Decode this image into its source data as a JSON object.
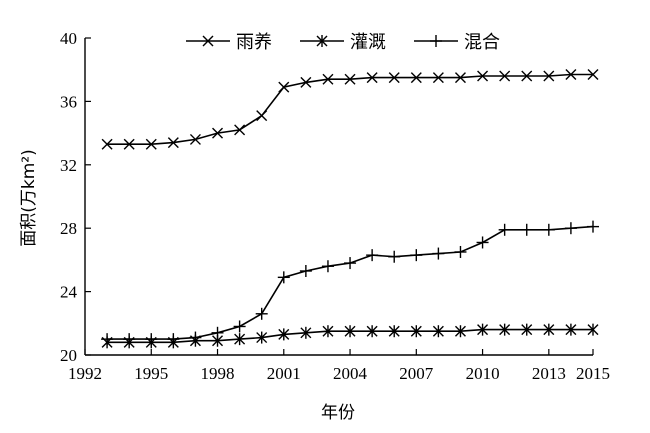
{
  "chart_data": {
    "type": "line",
    "xlabel": "年份",
    "ylabel": "面积(万km²)",
    "xlim": [
      1992,
      2015
    ],
    "ylim": [
      20,
      40
    ],
    "xticks": [
      "1992",
      "1995",
      "1998",
      "2001",
      "2004",
      "2007",
      "2010",
      "2013",
      "2015"
    ],
    "yticks": [
      "20",
      "24",
      "28",
      "32",
      "36",
      "40"
    ],
    "grid": false,
    "legend_position": "top-center",
    "series": [
      {
        "name": "雨养",
        "marker": "x",
        "x": [
          1993,
          1994,
          1995,
          1996,
          1997,
          1998,
          1999,
          2000,
          2001,
          2002,
          2003,
          2004,
          2005,
          2006,
          2007,
          2008,
          2009,
          2010,
          2011,
          2012,
          2013,
          2014,
          2015
        ],
        "values": [
          33.3,
          33.3,
          33.3,
          33.4,
          33.6,
          34.0,
          34.2,
          35.1,
          36.9,
          37.2,
          37.4,
          37.4,
          37.5,
          37.5,
          37.5,
          37.5,
          37.5,
          37.6,
          37.6,
          37.6,
          37.6,
          37.7,
          37.7
        ]
      },
      {
        "name": "灌溉",
        "marker": "asterisk",
        "x": [
          1993,
          1994,
          1995,
          1996,
          1997,
          1998,
          1999,
          2000,
          2001,
          2002,
          2003,
          2004,
          2005,
          2006,
          2007,
          2008,
          2009,
          2010,
          2011,
          2012,
          2013,
          2014,
          2015
        ],
        "values": [
          20.8,
          20.8,
          20.8,
          20.8,
          20.9,
          20.9,
          21.0,
          21.1,
          21.3,
          21.4,
          21.5,
          21.5,
          21.5,
          21.5,
          21.5,
          21.5,
          21.5,
          21.6,
          21.6,
          21.6,
          21.6,
          21.6,
          21.6
        ]
      },
      {
        "name": "混合",
        "marker": "plus",
        "x": [
          1993,
          1994,
          1995,
          1996,
          1997,
          1998,
          1999,
          2000,
          2001,
          2002,
          2003,
          2004,
          2005,
          2006,
          2007,
          2008,
          2009,
          2010,
          2011,
          2012,
          2013,
          2014,
          2015
        ],
        "values": [
          21.0,
          21.0,
          21.0,
          21.0,
          21.1,
          21.4,
          21.8,
          22.6,
          24.9,
          25.3,
          25.6,
          25.8,
          26.3,
          26.2,
          26.3,
          26.4,
          26.5,
          27.1,
          27.9,
          27.9,
          27.9,
          28.0,
          28.1
        ]
      }
    ]
  }
}
